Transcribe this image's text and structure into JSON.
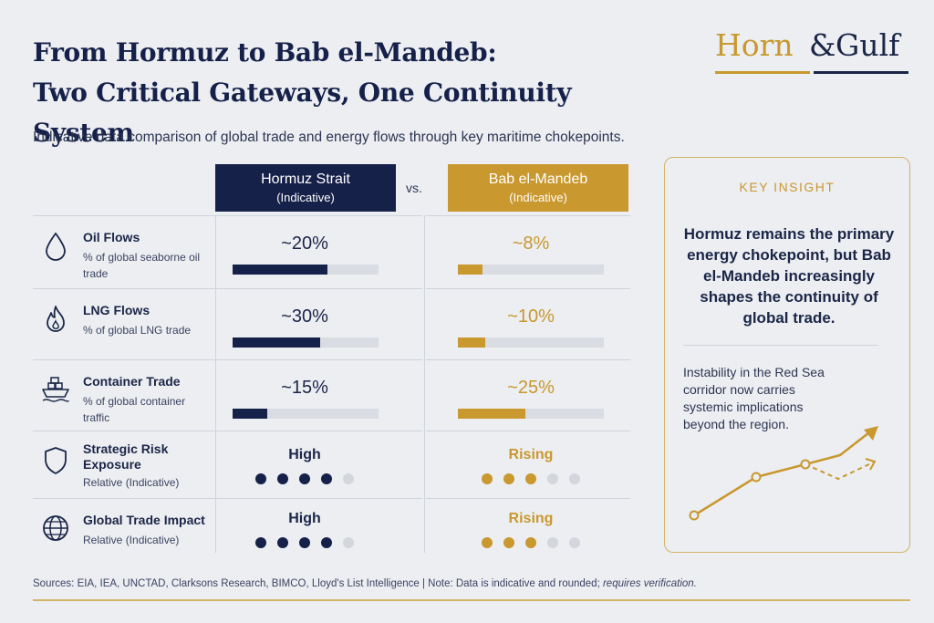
{
  "header": {
    "title_line1": "From Hormuz to Bab el-Mandeb:",
    "title_line2": "Two Critical Gateways, One Continuity System",
    "subtitle": "Indicative data comparison of global trade and energy flows through key maritime chokepoints."
  },
  "logo": {
    "word1": "Horn",
    "amp": "&",
    "word2": "Gulf"
  },
  "columns": {
    "left": {
      "name": "Hormuz Strait",
      "note": "(Indicative)"
    },
    "vs": "vs.",
    "right": {
      "name": "Bab el-Mandeb",
      "note": "(Indicative)"
    }
  },
  "rows": [
    {
      "label": "Oil Flows",
      "desc": "% of global seaborne oil trade",
      "icon": "drop-icon",
      "hormuz": "~20%",
      "hormuz_fill": 0.65,
      "bab": "~8%",
      "bab_fill": 0.17
    },
    {
      "label": "LNG Flows",
      "desc": "% of global LNG trade",
      "icon": "flame-icon",
      "hormuz": "~30%",
      "hormuz_fill": 0.6,
      "bab": "~10%",
      "bab_fill": 0.19
    },
    {
      "label": "Container Trade",
      "desc": "% of global container traffic",
      "icon": "ship-icon",
      "hormuz": "~15%",
      "hormuz_fill": 0.24,
      "bab": "~25%",
      "bab_fill": 0.46
    },
    {
      "label": "Strategic Risk Exposure",
      "desc": "Relative (Indicative)",
      "icon": "shield-icon",
      "hormuz": "High",
      "hormuz_dots": 4,
      "bab": "Rising",
      "bab_dots": 3
    },
    {
      "label": "Global Trade Impact",
      "desc": "Relative (Indicative)",
      "icon": "globe-icon",
      "hormuz": "High",
      "hormuz_dots": 4,
      "bab": "Rising",
      "bab_dots": 3
    }
  ],
  "insight": {
    "heading": "KEY INSIGHT",
    "text": "Hormuz remains the primary energy chokepoint, but Bab el-Mandeb increasingly shapes the continuity of global trade.",
    "body": "Instability in the Red Sea corridor now carries systemic implications beyond the region."
  },
  "footer": {
    "sources": "Sources: EIA, IEA, UNCTAD, Clarksons Research, BIMCO, Lloyd's List Intelligence  |  Note: Data is indicative and rounded;",
    "note": "requires verification."
  },
  "colors": {
    "navy": "#16214a",
    "gold": "#c9982e",
    "track": "#d9dce2",
    "bg": "#eceef2"
  }
}
